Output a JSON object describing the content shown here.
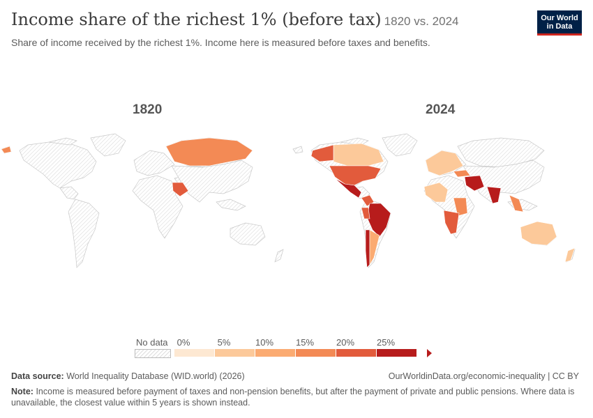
{
  "header": {
    "title": "Income share of the richest 1% (before tax)",
    "title_suffix": "1820 vs. 2024",
    "subtitle": "Share of income received by the richest 1%. Income here is measured before taxes and benefits.",
    "logo_line1": "Our World",
    "logo_line2": "in Data"
  },
  "maps": [
    {
      "year": "1820",
      "regions": [
        {
          "region": "Russia",
          "bin": 3
        },
        {
          "region": "Saudi Arabia",
          "bin": 4
        },
        {
          "region": "Iceland",
          "bin": 3
        }
      ]
    },
    {
      "year": "2024",
      "regions": [
        {
          "region": "Canada",
          "bin": 1
        },
        {
          "region": "Alaska",
          "bin": 4
        },
        {
          "region": "United States",
          "bin": 4
        },
        {
          "region": "Mexico",
          "bin": 5
        },
        {
          "region": "Colombia",
          "bin": 4
        },
        {
          "region": "Brazil",
          "bin": 5
        },
        {
          "region": "Peru",
          "bin": 4
        },
        {
          "region": "Chile",
          "bin": 5
        },
        {
          "region": "Argentina",
          "bin": 2
        },
        {
          "region": "Europe",
          "bin": 1
        },
        {
          "region": "Turkey",
          "bin": 3
        },
        {
          "region": "Middle East",
          "bin": 5
        },
        {
          "region": "India",
          "bin": 5
        },
        {
          "region": "Southeast Asia",
          "bin": 3
        },
        {
          "region": "West Africa",
          "bin": 1
        },
        {
          "region": "East Africa",
          "bin": 3
        },
        {
          "region": "Southern Africa",
          "bin": 4
        },
        {
          "region": "Australia",
          "bin": 1
        },
        {
          "region": "New Zealand",
          "bin": 1
        }
      ]
    }
  ],
  "legend": {
    "no_data_label": "No data",
    "ticks": [
      "0%",
      "5%",
      "10%",
      "15%",
      "20%",
      "25%"
    ],
    "colors": [
      "#fde8d2",
      "#fcc99a",
      "#fbab72",
      "#f38a55",
      "#e25b3c",
      "#b71c1c"
    ]
  },
  "footer": {
    "source_label": "Data source:",
    "source_text": "World Inequality Database (WID.world) (2026)",
    "url": "OurWorldinData.org/economic-inequality | CC BY",
    "note_label": "Note:",
    "note_text": "Income is measured before payment of taxes and non-pension benefits, but after the payment of private and public pensions. Where data is unavailable, the closest value within 5 years is shown instead."
  }
}
